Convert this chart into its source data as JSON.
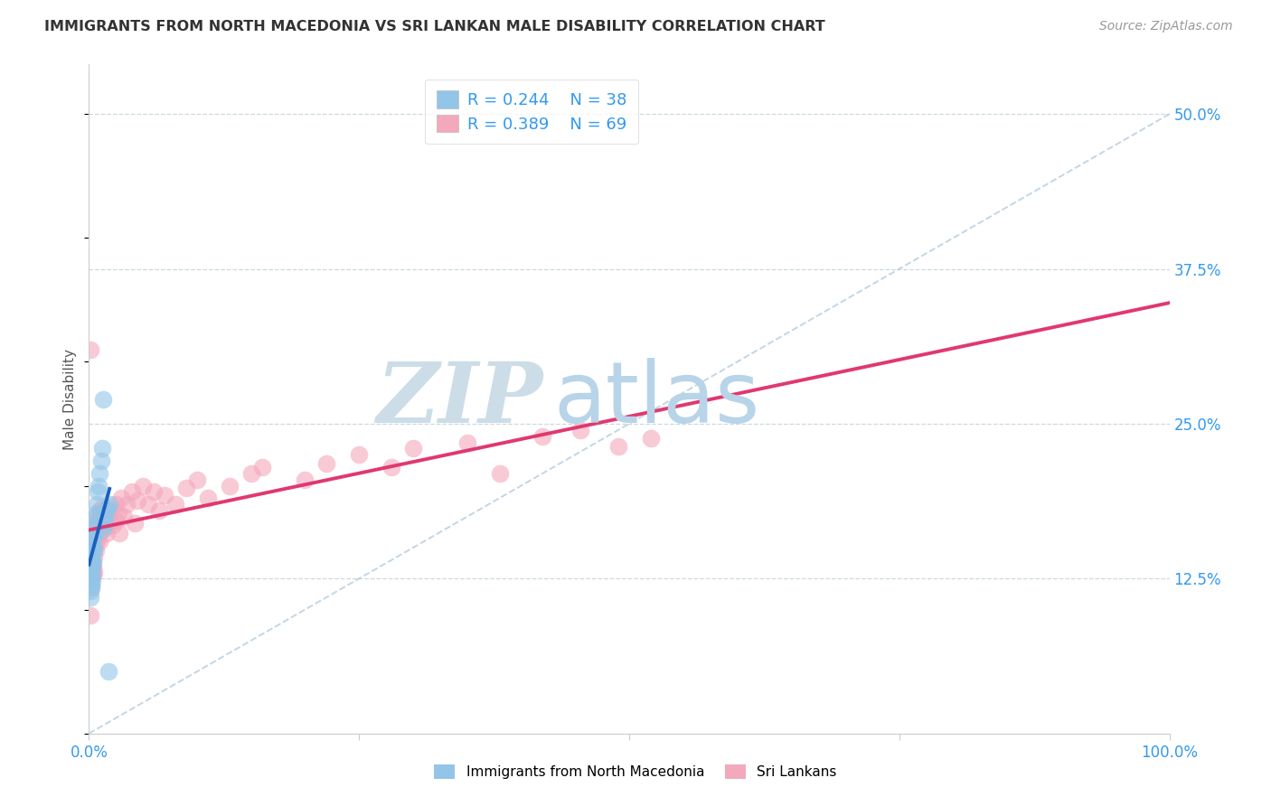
{
  "title": "IMMIGRANTS FROM NORTH MACEDONIA VS SRI LANKAN MALE DISABILITY CORRELATION CHART",
  "source": "Source: ZipAtlas.com",
  "ylabel": "Male Disability",
  "right_yticklabels": [
    "12.5%",
    "25.0%",
    "37.5%",
    "50.0%"
  ],
  "right_yticks": [
    0.125,
    0.25,
    0.375,
    0.5
  ],
  "legend_r1": "R = 0.244",
  "legend_n1": "N = 38",
  "legend_r2": "R = 0.389",
  "legend_n2": "N = 69",
  "blue_color": "#92c5e8",
  "pink_color": "#f4a8bc",
  "blue_line_color": "#1a5fbd",
  "pink_line_color": "#e03870",
  "ref_line_color": "#b8cfe0",
  "watermark_zip": "ZIP",
  "watermark_atlas": "atlas",
  "watermark_zip_color": "#ccdde8",
  "watermark_atlas_color": "#b8d4e8",
  "grid_color": "#c8d4dc",
  "legend_text_color": "#3399ee",
  "axis_color": "#3399ee",
  "title_color": "#333333",
  "blue_x": [
    0.001,
    0.001,
    0.001,
    0.001,
    0.001,
    0.002,
    0.002,
    0.002,
    0.002,
    0.002,
    0.003,
    0.003,
    0.003,
    0.003,
    0.003,
    0.004,
    0.004,
    0.004,
    0.005,
    0.005,
    0.005,
    0.006,
    0.006,
    0.007,
    0.007,
    0.008,
    0.009,
    0.01,
    0.011,
    0.012,
    0.013,
    0.015,
    0.016,
    0.017,
    0.018,
    0.019,
    0.015,
    0.013
  ],
  "blue_y": [
    0.13,
    0.125,
    0.12,
    0.115,
    0.11,
    0.145,
    0.14,
    0.135,
    0.125,
    0.118,
    0.155,
    0.148,
    0.14,
    0.13,
    0.122,
    0.16,
    0.15,
    0.138,
    0.165,
    0.158,
    0.148,
    0.175,
    0.168,
    0.185,
    0.178,
    0.195,
    0.2,
    0.21,
    0.22,
    0.23,
    0.27,
    0.175,
    0.18,
    0.182,
    0.05,
    0.185,
    0.17,
    0.165
  ],
  "pink_x": [
    0.001,
    0.001,
    0.002,
    0.002,
    0.002,
    0.003,
    0.003,
    0.003,
    0.004,
    0.004,
    0.004,
    0.005,
    0.005,
    0.005,
    0.006,
    0.006,
    0.007,
    0.007,
    0.008,
    0.008,
    0.009,
    0.009,
    0.01,
    0.01,
    0.01,
    0.011,
    0.012,
    0.012,
    0.013,
    0.014,
    0.015,
    0.016,
    0.017,
    0.018,
    0.02,
    0.022,
    0.025,
    0.025,
    0.027,
    0.028,
    0.03,
    0.032,
    0.035,
    0.04,
    0.042,
    0.045,
    0.05,
    0.055,
    0.06,
    0.065,
    0.07,
    0.08,
    0.09,
    0.1,
    0.11,
    0.13,
    0.15,
    0.16,
    0.2,
    0.22,
    0.25,
    0.28,
    0.3,
    0.35,
    0.38,
    0.42,
    0.455,
    0.49,
    0.52
  ],
  "pink_y": [
    0.31,
    0.095,
    0.13,
    0.125,
    0.118,
    0.14,
    0.135,
    0.128,
    0.148,
    0.135,
    0.128,
    0.155,
    0.142,
    0.13,
    0.162,
    0.148,
    0.168,
    0.155,
    0.172,
    0.158,
    0.175,
    0.162,
    0.18,
    0.168,
    0.155,
    0.178,
    0.182,
    0.168,
    0.175,
    0.165,
    0.17,
    0.162,
    0.168,
    0.175,
    0.18,
    0.168,
    0.185,
    0.172,
    0.178,
    0.162,
    0.19,
    0.175,
    0.185,
    0.195,
    0.17,
    0.188,
    0.2,
    0.185,
    0.195,
    0.18,
    0.192,
    0.185,
    0.198,
    0.205,
    0.19,
    0.2,
    0.21,
    0.215,
    0.205,
    0.218,
    0.225,
    0.215,
    0.23,
    0.235,
    0.21,
    0.24,
    0.245,
    0.232,
    0.238
  ]
}
